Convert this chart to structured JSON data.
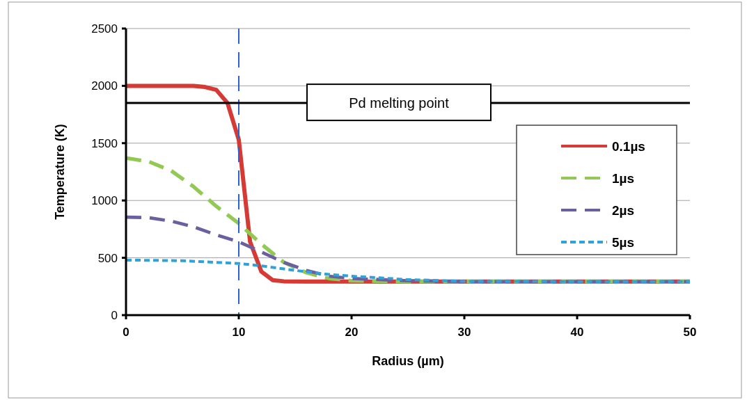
{
  "chart_data": {
    "type": "line",
    "xlabel": "Radius (µm)",
    "ylabel": "Temperature (K)",
    "xlim": [
      0,
      50
    ],
    "xticks": [
      0,
      10,
      20,
      30,
      40,
      50
    ],
    "ylim": [
      0,
      2500
    ],
    "yticks": [
      0,
      500,
      1000,
      1500,
      2000,
      2500
    ],
    "grid": "y",
    "legend": "right",
    "series": [
      {
        "name": "0.1µs",
        "color": "#d63a35",
        "line_style": "solid",
        "x": [
          0,
          2,
          4,
          6,
          7,
          8,
          9,
          10,
          11,
          12,
          13,
          14,
          16,
          20,
          30,
          40,
          50
        ],
        "values": [
          2000,
          2000,
          2000,
          2000,
          1990,
          1965,
          1850,
          1530,
          640,
          380,
          305,
          295,
          293,
          293,
          293,
          293,
          293
        ]
      },
      {
        "name": "1µs",
        "color": "#92c955",
        "line_style": "dashed",
        "x": [
          0,
          2,
          4,
          6,
          8,
          10,
          12,
          14,
          16,
          18,
          20,
          25,
          30,
          40,
          50
        ],
        "values": [
          1370,
          1340,
          1260,
          1120,
          950,
          800,
          620,
          460,
          370,
          320,
          300,
          293,
          293,
          293,
          293
        ]
      },
      {
        "name": "2µs",
        "color": "#6b5fa0",
        "line_style": "dashed",
        "x": [
          0,
          2,
          4,
          6,
          8,
          10,
          12,
          14,
          16,
          18,
          20,
          25,
          30,
          40,
          50
        ],
        "values": [
          855,
          850,
          820,
          770,
          700,
          640,
          550,
          460,
          390,
          340,
          320,
          300,
          293,
          293,
          293
        ]
      },
      {
        "name": "5µs",
        "color": "#2fa3d9",
        "line_style": "dotted",
        "x": [
          0,
          5,
          8,
          10,
          12,
          15,
          18,
          20,
          25,
          30,
          40,
          50
        ],
        "values": [
          480,
          475,
          460,
          450,
          430,
          390,
          355,
          340,
          310,
          295,
          293,
          293
        ]
      }
    ],
    "ref_lines": [
      {
        "axis": "x",
        "value": 10,
        "color": "#2a62d6",
        "line_style": "dashed"
      },
      {
        "axis": "y",
        "value": 1850,
        "label": "Pd melting point",
        "color": "#000000",
        "line_style": "solid"
      }
    ]
  }
}
